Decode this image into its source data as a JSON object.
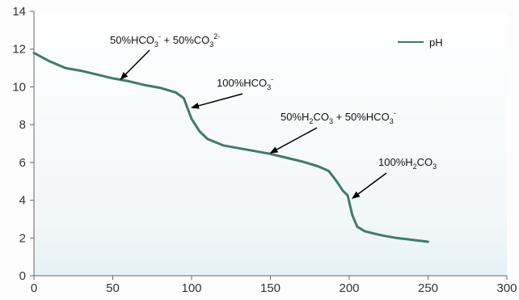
{
  "chart_data": {
    "type": "line",
    "title": "",
    "xlabel": "",
    "ylabel": "",
    "xlim": [
      0,
      300
    ],
    "ylim": [
      0,
      14
    ],
    "xticks": [
      "0",
      "50",
      "100",
      "150",
      "200",
      "250",
      "300"
    ],
    "yticks": [
      "0",
      "2",
      "4",
      "6",
      "8",
      "10",
      "12",
      "14"
    ],
    "grid": false,
    "legend": {
      "position": "top-right",
      "entries": [
        "pH"
      ]
    },
    "series": [
      {
        "name": "pH",
        "color": "#3f7a6a",
        "x": [
          0,
          10,
          20,
          30,
          40,
          50,
          60,
          70,
          80,
          90,
          95,
          100,
          105,
          110,
          120,
          130,
          140,
          150,
          160,
          170,
          180,
          187,
          192,
          196,
          199,
          200,
          202,
          205,
          210,
          220,
          230,
          240,
          250
        ],
        "y": [
          11.8,
          11.35,
          11.0,
          10.85,
          10.65,
          10.45,
          10.3,
          10.1,
          9.95,
          9.7,
          9.4,
          8.3,
          7.65,
          7.25,
          6.9,
          6.75,
          6.6,
          6.45,
          6.25,
          6.05,
          5.8,
          5.55,
          5.0,
          4.5,
          4.25,
          3.9,
          3.2,
          2.6,
          2.35,
          2.15,
          2.0,
          1.9,
          1.8
        ]
      }
    ],
    "annotations": [
      {
        "text_main": "50%HCO",
        "sub1": "3",
        "sup1": "-",
        "text_mid": " + 50%CO",
        "sub2": "3",
        "sup2": "2-",
        "target_x": 55,
        "target_y": 10.4
      },
      {
        "text_main": "100%HCO",
        "sub1": "3",
        "sup1": "-",
        "target_x": 100,
        "target_y": 8.9
      },
      {
        "text_a": "50%H",
        "sub_a": "2",
        "text_b": "CO",
        "sub_b": "3",
        "text_c": " + 50%HCO",
        "sub_c": "3",
        "sup_c": "-",
        "target_x": 150,
        "target_y": 6.5
      },
      {
        "text_a": "100%H",
        "sub_a": "2",
        "text_b": "CO",
        "sub_b": "3",
        "target_x": 202,
        "target_y": 4.1
      }
    ]
  }
}
